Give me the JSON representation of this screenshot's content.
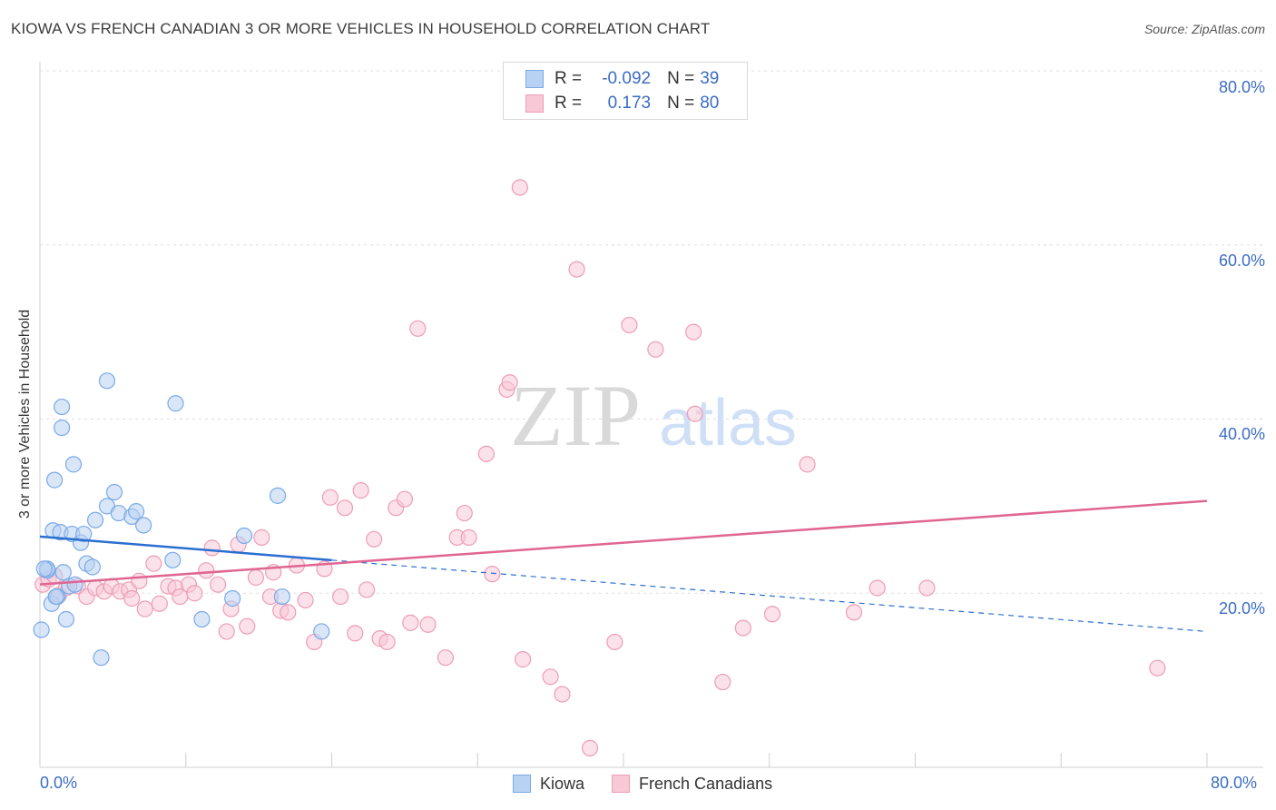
{
  "chart_data": {
    "type": "scatter",
    "title": "KIOWA VS FRENCH CANADIAN 3 OR MORE VEHICLES IN HOUSEHOLD CORRELATION CHART",
    "source": "Source: ZipAtlas.com",
    "xlabel": "",
    "ylabel": "3 or more Vehicles in Household",
    "xlim": [
      0,
      80
    ],
    "ylim": [
      0,
      80
    ],
    "x_tick_labels": [
      "0.0%",
      "80.0%"
    ],
    "y_tick_labels": [
      "20.0%",
      "40.0%",
      "60.0%",
      "80.0%"
    ],
    "y_ticks": [
      20,
      40,
      60,
      80
    ],
    "grid": true,
    "watermark": {
      "zip": "ZIP",
      "atlas": "atlas"
    },
    "legend_stats": [
      {
        "r_label": "R =",
        "r_value": "-0.092",
        "n_label": "N =",
        "n_value": "39"
      },
      {
        "r_label": "R =",
        "r_value": "0.173",
        "n_label": "N =",
        "n_value": "80"
      }
    ],
    "series": [
      {
        "name": "Kiowa",
        "color": "#7aaae8",
        "fill": "#b8d2f3",
        "trend_color": "#2a6fd0",
        "trend": {
          "x0": 0,
          "y0": 26.5,
          "x1": 20,
          "y1": 23.8,
          "dash_x1": 80,
          "dash_y1": 15.6
        },
        "points": [
          [
            0.1,
            15.8
          ],
          [
            0.5,
            22.6
          ],
          [
            0.5,
            22.8
          ],
          [
            0.8,
            18.8
          ],
          [
            0.9,
            27.2
          ],
          [
            1.0,
            33.0
          ],
          [
            1.2,
            19.6
          ],
          [
            1.4,
            27.0
          ],
          [
            1.5,
            41.4
          ],
          [
            1.5,
            39.0
          ],
          [
            1.6,
            22.4
          ],
          [
            1.8,
            17.0
          ],
          [
            2.0,
            20.8
          ],
          [
            2.2,
            26.8
          ],
          [
            2.3,
            34.8
          ],
          [
            2.4,
            21.0
          ],
          [
            2.8,
            25.8
          ],
          [
            3.0,
            26.8
          ],
          [
            3.2,
            23.4
          ],
          [
            3.6,
            23.0
          ],
          [
            3.8,
            28.4
          ],
          [
            4.2,
            12.6
          ],
          [
            4.6,
            44.4
          ],
          [
            4.6,
            30.0
          ],
          [
            5.1,
            31.6
          ],
          [
            5.4,
            29.2
          ],
          [
            6.3,
            28.8
          ],
          [
            6.6,
            29.4
          ],
          [
            7.1,
            27.8
          ],
          [
            9.1,
            23.8
          ],
          [
            9.3,
            41.8
          ],
          [
            11.1,
            17.0
          ],
          [
            13.2,
            19.4
          ],
          [
            14.0,
            26.6
          ],
          [
            16.3,
            31.2
          ],
          [
            16.6,
            19.6
          ],
          [
            19.3,
            15.6
          ],
          [
            0.3,
            22.8
          ],
          [
            1.1,
            19.6
          ]
        ]
      },
      {
        "name": "French Canadians",
        "color": "#ee9db6",
        "fill": "#f8c8d7",
        "trend_color": "#e06692",
        "trend": {
          "x0": 0,
          "y0": 21.0,
          "x1": 80,
          "y1": 30.6
        },
        "points": [
          [
            0.2,
            21.0
          ],
          [
            0.6,
            21.6
          ],
          [
            1.0,
            22.0
          ],
          [
            1.3,
            19.8
          ],
          [
            1.8,
            20.6
          ],
          [
            2.6,
            20.8
          ],
          [
            3.2,
            19.6
          ],
          [
            3.8,
            20.6
          ],
          [
            4.4,
            20.2
          ],
          [
            4.9,
            20.8
          ],
          [
            5.5,
            20.2
          ],
          [
            6.1,
            20.4
          ],
          [
            6.3,
            19.4
          ],
          [
            6.8,
            21.4
          ],
          [
            7.2,
            18.2
          ],
          [
            7.8,
            23.4
          ],
          [
            8.2,
            18.8
          ],
          [
            8.8,
            20.8
          ],
          [
            9.3,
            20.6
          ],
          [
            9.6,
            19.6
          ],
          [
            10.2,
            21.0
          ],
          [
            10.6,
            20.0
          ],
          [
            11.4,
            22.6
          ],
          [
            11.8,
            25.2
          ],
          [
            12.2,
            21.0
          ],
          [
            12.8,
            15.6
          ],
          [
            13.1,
            18.2
          ],
          [
            13.6,
            25.6
          ],
          [
            14.2,
            16.2
          ],
          [
            14.8,
            21.8
          ],
          [
            15.2,
            26.4
          ],
          [
            15.8,
            19.6
          ],
          [
            16.0,
            22.4
          ],
          [
            16.5,
            18.0
          ],
          [
            17.0,
            17.8
          ],
          [
            17.6,
            23.2
          ],
          [
            18.2,
            19.2
          ],
          [
            18.8,
            14.4
          ],
          [
            19.5,
            22.8
          ],
          [
            19.9,
            31.0
          ],
          [
            20.6,
            19.6
          ],
          [
            20.9,
            29.8
          ],
          [
            21.6,
            15.4
          ],
          [
            22.0,
            31.8
          ],
          [
            22.4,
            20.4
          ],
          [
            22.9,
            26.2
          ],
          [
            23.3,
            14.8
          ],
          [
            23.8,
            14.4
          ],
          [
            24.4,
            29.8
          ],
          [
            25.0,
            30.8
          ],
          [
            25.4,
            16.6
          ],
          [
            25.9,
            50.4
          ],
          [
            26.6,
            16.4
          ],
          [
            27.8,
            12.6
          ],
          [
            28.6,
            26.4
          ],
          [
            29.1,
            29.2
          ],
          [
            29.4,
            26.4
          ],
          [
            30.6,
            36.0
          ],
          [
            31.0,
            22.2
          ],
          [
            32.0,
            43.4
          ],
          [
            32.2,
            44.2
          ],
          [
            32.9,
            66.6
          ],
          [
            33.1,
            12.4
          ],
          [
            35.0,
            10.4
          ],
          [
            35.8,
            8.4
          ],
          [
            36.8,
            57.2
          ],
          [
            37.7,
            2.2
          ],
          [
            39.4,
            14.4
          ],
          [
            40.4,
            50.8
          ],
          [
            42.2,
            48.0
          ],
          [
            44.8,
            50.0
          ],
          [
            44.9,
            40.6
          ],
          [
            46.8,
            9.8
          ],
          [
            48.2,
            16.0
          ],
          [
            50.2,
            17.6
          ],
          [
            52.6,
            34.8
          ],
          [
            55.8,
            17.8
          ],
          [
            57.4,
            20.6
          ],
          [
            60.8,
            20.6
          ],
          [
            76.6,
            11.4
          ]
        ]
      }
    ]
  }
}
